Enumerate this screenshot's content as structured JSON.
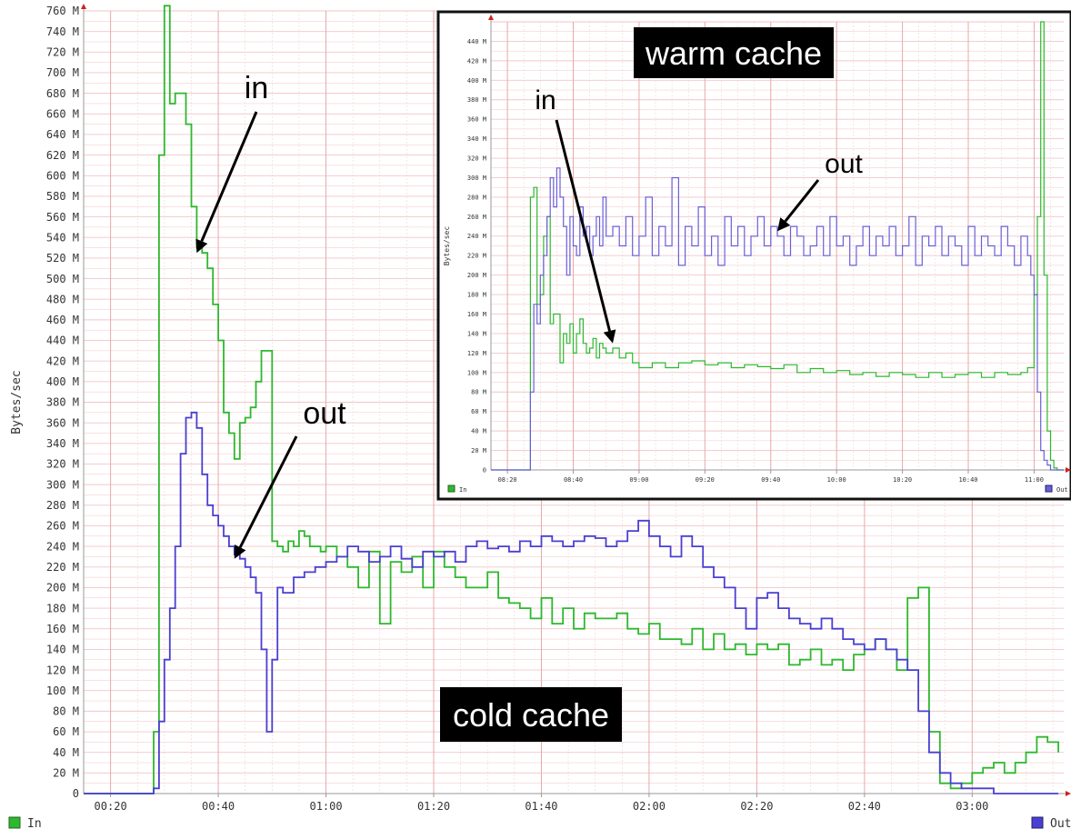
{
  "chart_data": [
    {
      "type": "line",
      "panel": "main",
      "ylabel": "Bytes/sec",
      "ylim": [
        0,
        760
      ],
      "y_ticks": [
        "0",
        "20 M",
        "40 M",
        "60 M",
        "80 M",
        "100 M",
        "120 M",
        "140 M",
        "160 M",
        "180 M",
        "200 M",
        "220 M",
        "240 M",
        "260 M",
        "280 M",
        "300 M",
        "320 M",
        "340 M",
        "360 M",
        "380 M",
        "400 M",
        "420 M",
        "440 M",
        "460 M",
        "480 M",
        "500 M",
        "520 M",
        "540 M",
        "560 M",
        "580 M",
        "600 M",
        "620 M",
        "640 M",
        "660 M",
        "680 M",
        "700 M",
        "720 M",
        "740 M",
        "760 M"
      ],
      "x_ticks": [
        "00:20",
        "00:40",
        "01:00",
        "01:20",
        "01:40",
        "02:00",
        "02:20",
        "02:40",
        "03:00"
      ],
      "xlim": [
        15,
        197
      ],
      "grid": true,
      "legend": "bottom",
      "caption": "cold cache",
      "annotations": [
        {
          "text": "in",
          "arrow_target_x": 36,
          "arrow_target_y": 525
        },
        {
          "text": "out",
          "arrow_target_x": 43,
          "arrow_target_y": 228
        }
      ],
      "series": [
        {
          "name": "In",
          "color": "#2db82d",
          "x": [
            15,
            27,
            28,
            29,
            30,
            31,
            32,
            33,
            34,
            35,
            36,
            37,
            38,
            39,
            40,
            41,
            42,
            43,
            44,
            45,
            46,
            47,
            48,
            49,
            50,
            51,
            52,
            53,
            54,
            55,
            56,
            57,
            58,
            59,
            60,
            62,
            64,
            66,
            68,
            70,
            72,
            74,
            76,
            78,
            80,
            82,
            84,
            86,
            88,
            90,
            92,
            94,
            96,
            98,
            100,
            102,
            104,
            106,
            108,
            110,
            112,
            114,
            116,
            118,
            120,
            122,
            124,
            126,
            128,
            130,
            132,
            134,
            136,
            138,
            140,
            142,
            144,
            146,
            148,
            150,
            152,
            154,
            156,
            158,
            160,
            162,
            164,
            166,
            168,
            170,
            172,
            174,
            176,
            178,
            180,
            182,
            184,
            186,
            188,
            190,
            192,
            194,
            196
          ],
          "values": [
            0,
            0,
            60,
            620,
            765,
            670,
            680,
            680,
            650,
            570,
            530,
            525,
            510,
            475,
            440,
            370,
            350,
            325,
            360,
            365,
            375,
            400,
            430,
            430,
            245,
            240,
            235,
            245,
            240,
            255,
            250,
            240,
            240,
            235,
            240,
            230,
            220,
            200,
            235,
            165,
            225,
            215,
            230,
            200,
            235,
            220,
            210,
            200,
            200,
            215,
            190,
            185,
            180,
            170,
            190,
            165,
            180,
            160,
            175,
            170,
            170,
            175,
            160,
            155,
            165,
            150,
            150,
            145,
            160,
            140,
            155,
            140,
            145,
            135,
            145,
            140,
            145,
            125,
            130,
            140,
            125,
            130,
            120,
            135,
            140,
            150,
            140,
            120,
            190,
            200,
            60,
            10,
            5,
            10,
            20,
            25,
            30,
            20,
            30,
            40,
            55,
            50,
            40
          ]
        },
        {
          "name": "Out",
          "color": "#4a3fd0",
          "x": [
            15,
            27,
            28,
            29,
            30,
            31,
            32,
            33,
            34,
            35,
            36,
            37,
            38,
            39,
            40,
            41,
            42,
            43,
            44,
            45,
            46,
            47,
            48,
            49,
            50,
            51,
            52,
            54,
            56,
            58,
            60,
            62,
            64,
            66,
            68,
            70,
            72,
            74,
            76,
            78,
            80,
            82,
            84,
            86,
            88,
            90,
            92,
            94,
            96,
            98,
            100,
            102,
            104,
            106,
            108,
            110,
            112,
            114,
            116,
            118,
            120,
            122,
            124,
            126,
            128,
            130,
            132,
            134,
            136,
            138,
            140,
            142,
            144,
            146,
            148,
            150,
            152,
            154,
            156,
            158,
            160,
            162,
            164,
            166,
            168,
            170,
            172,
            174,
            176,
            178,
            180,
            182,
            184,
            186,
            188,
            190,
            192,
            194,
            196
          ],
          "values": [
            0,
            0,
            5,
            70,
            130,
            180,
            240,
            330,
            365,
            370,
            355,
            310,
            280,
            270,
            260,
            250,
            240,
            232,
            228,
            220,
            210,
            195,
            140,
            60,
            130,
            200,
            195,
            210,
            215,
            220,
            225,
            230,
            240,
            235,
            225,
            230,
            240,
            228,
            220,
            235,
            230,
            235,
            225,
            240,
            245,
            238,
            240,
            235,
            245,
            240,
            250,
            245,
            240,
            245,
            250,
            248,
            240,
            245,
            255,
            265,
            250,
            240,
            230,
            250,
            240,
            220,
            210,
            200,
            180,
            160,
            190,
            195,
            180,
            170,
            165,
            160,
            170,
            160,
            150,
            145,
            140,
            150,
            140,
            130,
            120,
            80,
            40,
            20,
            10,
            5,
            5,
            5,
            0,
            0,
            0,
            0,
            0,
            0,
            0
          ]
        }
      ]
    },
    {
      "type": "line",
      "panel": "inset",
      "ylabel": "Bytes/sec",
      "ylim": [
        0,
        460
      ],
      "y_ticks": [
        "0",
        "20 M",
        "40 M",
        "60 M",
        "80 M",
        "100 M",
        "120 M",
        "140 M",
        "160 M",
        "180 M",
        "200 M",
        "220 M",
        "240 M",
        "260 M",
        "280 M",
        "300 M",
        "320 M",
        "340 M",
        "360 M",
        "380 M",
        "400 M",
        "420 M",
        "440 M"
      ],
      "x_ticks": [
        "08:20",
        "08:40",
        "09:00",
        "09:20",
        "09:40",
        "10:00",
        "10:20",
        "10:40",
        "11:00"
      ],
      "xlim": [
        15,
        189
      ],
      "grid": true,
      "legend": "bottom",
      "caption": "warm cache",
      "annotations": [
        {
          "text": "in",
          "arrow_target_x": 52,
          "arrow_target_y": 130
        },
        {
          "text": "out",
          "arrow_target_x": 102,
          "arrow_target_y": 245
        }
      ],
      "series": [
        {
          "name": "In",
          "color": "#2db82d",
          "x": [
            15,
            26,
            27,
            28,
            29,
            30,
            31,
            32,
            33,
            34,
            35,
            36,
            37,
            38,
            39,
            40,
            41,
            42,
            43,
            44,
            45,
            46,
            47,
            48,
            49,
            50,
            52,
            54,
            56,
            58,
            60,
            64,
            68,
            72,
            76,
            80,
            84,
            88,
            92,
            96,
            100,
            104,
            108,
            112,
            116,
            120,
            124,
            128,
            132,
            136,
            140,
            144,
            148,
            152,
            156,
            160,
            164,
            168,
            172,
            176,
            178,
            180,
            181,
            182,
            183,
            184,
            185,
            186,
            187,
            189
          ],
          "values": [
            0,
            0,
            280,
            290,
            170,
            180,
            240,
            260,
            150,
            160,
            160,
            110,
            140,
            130,
            150,
            120,
            140,
            155,
            130,
            120,
            125,
            135,
            115,
            130,
            125,
            120,
            125,
            115,
            120,
            110,
            105,
            110,
            105,
            110,
            112,
            108,
            110,
            105,
            108,
            106,
            104,
            108,
            100,
            104,
            100,
            102,
            98,
            100,
            96,
            100,
            98,
            95,
            100,
            95,
            98,
            100,
            95,
            100,
            98,
            100,
            105,
            180,
            260,
            460,
            200,
            40,
            10,
            2,
            0,
            0
          ]
        },
        {
          "name": "Out",
          "color": "#6a5fd8",
          "x": [
            15,
            26,
            27,
            28,
            29,
            30,
            31,
            32,
            33,
            34,
            35,
            36,
            37,
            38,
            39,
            40,
            41,
            42,
            43,
            44,
            45,
            46,
            47,
            48,
            49,
            50,
            52,
            54,
            56,
            58,
            60,
            62,
            64,
            66,
            68,
            70,
            72,
            74,
            76,
            78,
            80,
            82,
            84,
            86,
            88,
            90,
            92,
            94,
            96,
            98,
            100,
            102,
            104,
            106,
            108,
            110,
            112,
            114,
            116,
            118,
            120,
            122,
            124,
            126,
            128,
            130,
            132,
            134,
            136,
            138,
            140,
            142,
            144,
            146,
            148,
            150,
            152,
            154,
            156,
            158,
            160,
            162,
            164,
            166,
            168,
            170,
            172,
            174,
            176,
            178,
            179,
            180,
            181,
            182,
            183,
            184,
            185,
            186,
            189
          ],
          "values": [
            0,
            0,
            80,
            170,
            150,
            200,
            220,
            260,
            300,
            270,
            310,
            280,
            250,
            200,
            260,
            230,
            220,
            270,
            240,
            250,
            220,
            240,
            260,
            230,
            280,
            240,
            250,
            230,
            260,
            220,
            240,
            280,
            220,
            250,
            230,
            300,
            210,
            250,
            230,
            270,
            220,
            240,
            210,
            260,
            230,
            250,
            220,
            240,
            260,
            230,
            250,
            240,
            220,
            250,
            240,
            220,
            230,
            250,
            220,
            260,
            230,
            240,
            210,
            230,
            250,
            220,
            240,
            230,
            250,
            220,
            230,
            260,
            210,
            240,
            230,
            250,
            220,
            240,
            230,
            210,
            250,
            220,
            240,
            230,
            220,
            250,
            230,
            210,
            240,
            220,
            200,
            180,
            80,
            20,
            10,
            5,
            0,
            0,
            0
          ]
        }
      ]
    }
  ]
}
